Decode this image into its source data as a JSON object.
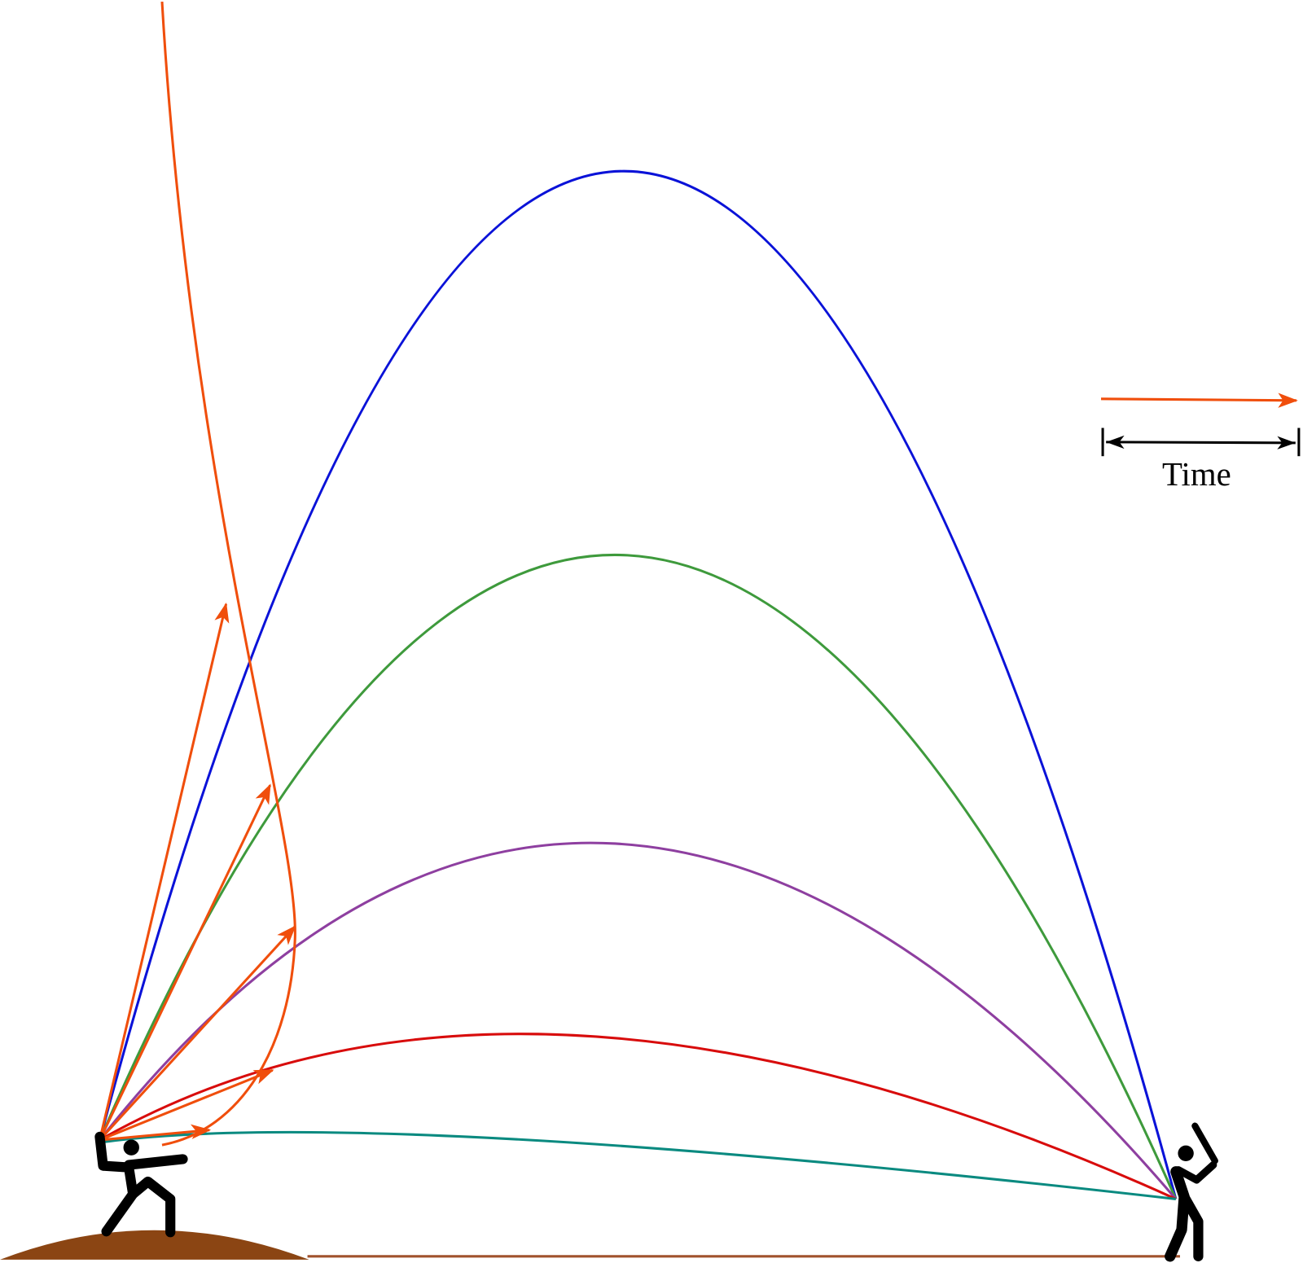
{
  "legend": {
    "label": "Time"
  }
}
